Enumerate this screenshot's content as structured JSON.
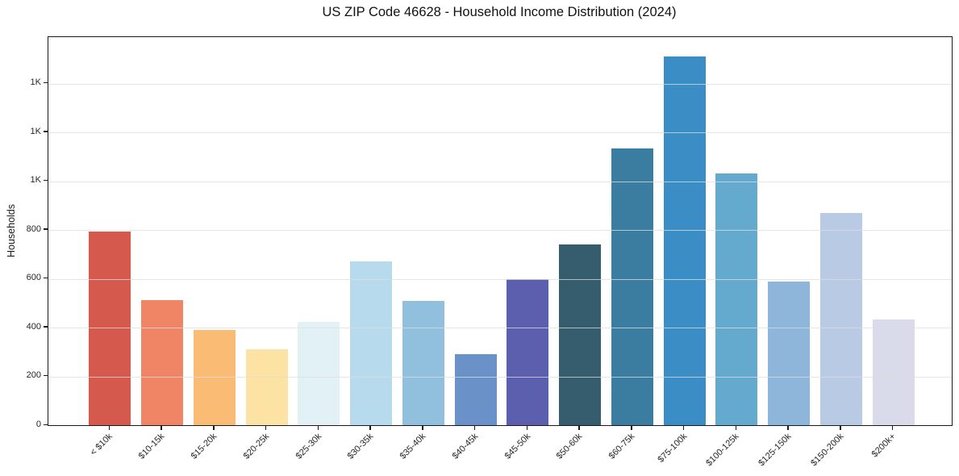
{
  "figure": {
    "background": "#ffffff"
  },
  "chart_data": {
    "type": "bar",
    "title": "US ZIP Code 46628 - Household Income Distribution (2024)",
    "xlabel": "",
    "ylabel": "Households",
    "categories": [
      "< $10k",
      "$10-15k",
      "$15-20k",
      "$20-25k",
      "$25-30k",
      "$30-35k",
      "$35-40k",
      "$40-45k",
      "$45-50k",
      "$50-60k",
      "$60-75k",
      "$75-100k",
      "$100-125k",
      "$125-150k",
      "$150-200k",
      "$200k+"
    ],
    "values": [
      793,
      511,
      391,
      312,
      424,
      672,
      509,
      290,
      600,
      742,
      1134,
      1510,
      1033,
      589,
      868,
      434
    ],
    "bar_colors": [
      "#d5594d",
      "#f08566",
      "#fabb74",
      "#fde3a3",
      "#e2f1f6",
      "#b7dbec",
      "#90c0de",
      "#6a92c8",
      "#5c5fad",
      "#365d6e",
      "#3a7da1",
      "#3a8ec5",
      "#64a9ce",
      "#8eb5da",
      "#b8cae4",
      "#d9daea"
    ],
    "ylim": [
      0,
      1590
    ],
    "yticks": {
      "values": [
        0,
        200,
        400,
        600,
        800,
        1000,
        1200,
        1400
      ],
      "labels": [
        "0",
        "200",
        "400",
        "600",
        "800",
        "1K",
        "1K",
        "1K"
      ]
    },
    "grid": "horizontal",
    "legend": "none",
    "x_tick_rotation_deg": 45,
    "axis_color": "#1a1a1a",
    "gridline_color": "#e8e8e8"
  }
}
